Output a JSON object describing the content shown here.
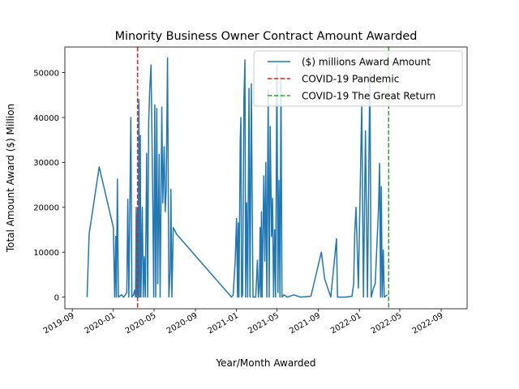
{
  "chart_data": {
    "type": "line",
    "title": "Minority Business Owner Contract Amount Awarded",
    "xlabel": "Year/Month Awarded",
    "ylabel": "Total Amount Award ($) Million",
    "xlim": [
      "2019-08-10",
      "2022-11-17"
    ],
    "ylim": [
      -2600,
      55700
    ],
    "x_ticks": [
      "2019-09",
      "2020-01",
      "2020-05",
      "2020-09",
      "2021-01",
      "2021-05",
      "2021-09",
      "2022-01",
      "2022-05",
      "2022-09"
    ],
    "y_ticks": [
      0,
      10000,
      20000,
      30000,
      40000,
      50000
    ],
    "grid": false,
    "legend_position": "upper right",
    "legend": [
      "($) millions Award Amount",
      "COVID-19 Pandemic",
      "COVID-19 The Great Return"
    ],
    "colors": {
      "series": "#1f77b4",
      "pandemic": "#d62728",
      "great_return": "#2ca02c"
    },
    "reference_lines": [
      {
        "name": "COVID-19 Pandemic",
        "x": "2020-03-13",
        "style": "dashed",
        "color": "#d62728"
      },
      {
        "name": "COVID-19 The Great Return",
        "x": "2022-03-29",
        "style": "dashed",
        "color": "#2ca02c"
      }
    ],
    "series": [
      {
        "name": "($) millions Award Amount",
        "color": "#1f77b4",
        "points": [
          [
            "2019-10-15",
            0
          ],
          [
            "2019-10-21",
            14000
          ],
          [
            "2019-11-20",
            29000
          ],
          [
            "2020-01-01",
            15500
          ],
          [
            "2020-01-05",
            0
          ],
          [
            "2020-01-08",
            13500
          ],
          [
            "2020-01-10",
            0
          ],
          [
            "2020-01-13",
            26300
          ],
          [
            "2020-01-16",
            0
          ],
          [
            "2020-01-25",
            500
          ],
          [
            "2020-02-01",
            0
          ],
          [
            "2020-02-10",
            1000
          ],
          [
            "2020-02-13",
            21800
          ],
          [
            "2020-02-16",
            0
          ],
          [
            "2020-02-22",
            40000
          ],
          [
            "2020-02-25",
            0
          ],
          [
            "2020-03-01",
            500
          ],
          [
            "2020-03-04",
            1500
          ],
          [
            "2020-03-07",
            0
          ],
          [
            "2020-03-09",
            20000
          ],
          [
            "2020-03-11",
            0
          ],
          [
            "2020-03-13",
            19000
          ],
          [
            "2020-03-15",
            0
          ],
          [
            "2020-03-17",
            44000
          ],
          [
            "2020-03-19",
            0
          ],
          [
            "2020-03-21",
            36000
          ],
          [
            "2020-03-23",
            0
          ],
          [
            "2020-03-27",
            20000
          ],
          [
            "2020-03-30",
            0
          ],
          [
            "2020-04-02",
            9000
          ],
          [
            "2020-04-05",
            0
          ],
          [
            "2020-04-09",
            32000
          ],
          [
            "2020-04-12",
            0
          ],
          [
            "2020-04-15",
            39000
          ],
          [
            "2020-04-18",
            46000
          ],
          [
            "2020-04-22",
            51700
          ],
          [
            "2020-04-27",
            22000
          ],
          [
            "2020-04-30",
            0
          ],
          [
            "2020-05-03",
            42800
          ],
          [
            "2020-05-06",
            0
          ],
          [
            "2020-05-09",
            42000
          ],
          [
            "2020-05-12",
            3000
          ],
          [
            "2020-05-16",
            31800
          ],
          [
            "2020-05-19",
            0
          ],
          [
            "2020-05-24",
            42300
          ],
          [
            "2020-05-27",
            21000
          ],
          [
            "2020-05-31",
            33500
          ],
          [
            "2020-06-03",
            19000
          ],
          [
            "2020-06-06",
            24000
          ],
          [
            "2020-06-10",
            53300
          ],
          [
            "2020-06-14",
            0
          ],
          [
            "2020-06-18",
            6000
          ],
          [
            "2020-06-20",
            24000
          ],
          [
            "2020-06-23",
            0
          ],
          [
            "2020-06-27",
            15500
          ],
          [
            "2020-07-07",
            14000
          ],
          [
            "2020-12-17",
            0
          ],
          [
            "2020-12-22",
            500
          ],
          [
            "2020-12-28",
            8000
          ],
          [
            "2021-01-01",
            17500
          ],
          [
            "2021-01-04",
            0
          ],
          [
            "2021-01-06",
            16500
          ],
          [
            "2021-01-08",
            0
          ],
          [
            "2021-01-10",
            16000
          ],
          [
            "2021-01-12",
            35000
          ],
          [
            "2021-01-14",
            40000
          ],
          [
            "2021-01-16",
            0
          ],
          [
            "2021-01-19",
            500
          ],
          [
            "2021-01-23",
            44000
          ],
          [
            "2021-01-26",
            52800
          ],
          [
            "2021-01-28",
            0
          ],
          [
            "2021-01-31",
            21000
          ],
          [
            "2021-02-03",
            0
          ],
          [
            "2021-02-07",
            46500
          ],
          [
            "2021-02-10",
            0
          ],
          [
            "2021-02-14",
            47500
          ],
          [
            "2021-02-17",
            17000
          ],
          [
            "2021-02-19",
            0
          ],
          [
            "2021-02-27",
            0
          ],
          [
            "2021-03-04",
            8200
          ],
          [
            "2021-03-07",
            0
          ],
          [
            "2021-03-10",
            2700
          ],
          [
            "2021-03-12",
            15500
          ],
          [
            "2021-03-14",
            0
          ],
          [
            "2021-03-16",
            19000
          ],
          [
            "2021-03-18",
            0
          ],
          [
            "2021-03-23",
            27000
          ],
          [
            "2021-03-26",
            8000
          ],
          [
            "2021-03-29",
            30000
          ],
          [
            "2021-04-01",
            0
          ],
          [
            "2021-04-05",
            46000
          ],
          [
            "2021-04-08",
            0
          ],
          [
            "2021-04-11",
            38000
          ],
          [
            "2021-04-15",
            13500
          ],
          [
            "2021-04-18",
            22000
          ],
          [
            "2021-04-21",
            0
          ],
          [
            "2021-04-24",
            15000
          ],
          [
            "2021-04-27",
            0
          ],
          [
            "2021-05-01",
            51700
          ],
          [
            "2021-05-04",
            1000
          ],
          [
            "2021-05-07",
            26000
          ],
          [
            "2021-05-10",
            0
          ],
          [
            "2021-05-13",
            49000
          ],
          [
            "2021-05-16",
            0
          ],
          [
            "2021-05-22",
            500
          ],
          [
            "2021-06-01",
            0
          ],
          [
            "2021-06-20",
            500
          ],
          [
            "2021-07-10",
            0
          ],
          [
            "2021-08-10",
            200
          ],
          [
            "2021-09-10",
            10000
          ],
          [
            "2021-09-20",
            4000
          ],
          [
            "2021-10-08",
            0
          ],
          [
            "2021-10-25",
            13000
          ],
          [
            "2021-10-28",
            0
          ],
          [
            "2021-11-20",
            0
          ],
          [
            "2021-12-10",
            200
          ],
          [
            "2021-12-15",
            3000
          ],
          [
            "2021-12-18",
            14000
          ],
          [
            "2021-12-22",
            20000
          ],
          [
            "2021-12-29",
            2000
          ],
          [
            "2022-01-08",
            43000
          ],
          [
            "2022-01-13",
            0
          ],
          [
            "2022-01-19",
            37000
          ],
          [
            "2022-01-25",
            0
          ],
          [
            "2022-02-01",
            50000
          ],
          [
            "2022-02-05",
            0
          ],
          [
            "2022-02-12",
            2000
          ],
          [
            "2022-02-17",
            3000
          ],
          [
            "2022-02-27",
            20000
          ],
          [
            "2022-03-02",
            29800
          ],
          [
            "2022-03-05",
            0
          ],
          [
            "2022-03-07",
            24600
          ],
          [
            "2022-03-10",
            0
          ],
          [
            "2022-03-13",
            10500
          ],
          [
            "2022-03-16",
            0
          ],
          [
            "2022-03-25",
            500
          ]
        ]
      }
    ]
  }
}
